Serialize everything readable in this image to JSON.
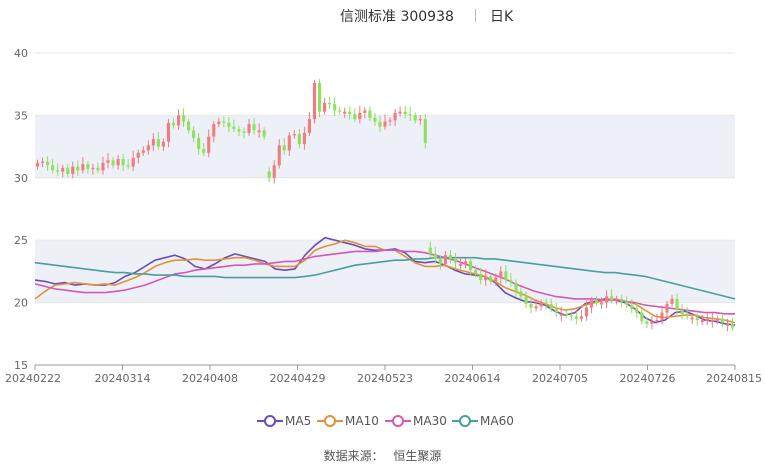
{
  "header": {
    "title": "信测标准 300938",
    "period": "日K"
  },
  "legend": [
    {
      "name": "MA5",
      "color": "#6a4fb5"
    },
    {
      "name": "MA10",
      "color": "#e0923c"
    },
    {
      "name": "MA30",
      "color": "#d657b5"
    },
    {
      "name": "MA60",
      "color": "#4b9e9f"
    }
  ],
  "footer": {
    "source_label": "数据来源：",
    "source_name": "恒生聚源"
  },
  "colors": {
    "up": "#f07c82",
    "down": "#8ee05e",
    "band": "#eef0f8",
    "grid": "#e6e6e6"
  },
  "chart_data": {
    "type": "candlestick",
    "title": "信测标准 300938",
    "ylim": [
      15,
      40
    ],
    "yticks": [
      15,
      20,
      25,
      30,
      35,
      40
    ],
    "grid": true,
    "legend_position": "bottom",
    "xtick_labels": [
      "20240222",
      "20240314",
      "20240408",
      "20240429",
      "20240523",
      "20240614",
      "20240705",
      "20240726",
      "20240815"
    ],
    "close": [
      31.2,
      31.3,
      31.0,
      30.6,
      30.5,
      30.8,
      30.3,
      30.9,
      30.6,
      31.1,
      30.7,
      30.8,
      30.6,
      31.2,
      31.4,
      31.0,
      31.5,
      31.0,
      30.9,
      31.6,
      32.0,
      32.2,
      32.6,
      33.1,
      32.5,
      32.9,
      34.4,
      34.2,
      35.0,
      34.5,
      33.8,
      33.2,
      32.3,
      32.0,
      33.3,
      34.3,
      34.5,
      34.4,
      34.1,
      33.9,
      33.7,
      33.6,
      34.3,
      33.8,
      33.8,
      33.3,
      30.0,
      31.0,
      32.6,
      32.2,
      33.4,
      33.5,
      32.7,
      33.6,
      34.7,
      37.6,
      35.3,
      36.0,
      35.9,
      35.4,
      35.3,
      35.3,
      35.1,
      34.7,
      35.2,
      35.4,
      34.8,
      34.5,
      34.1,
      34.5,
      34.6,
      35.2,
      35.3,
      35.1,
      35.0,
      34.6,
      34.7,
      32.8,
      23.9,
      23.5,
      23.1,
      23.8,
      23.5,
      23.2,
      23.1,
      23.3,
      22.6,
      22.3,
      21.8,
      22.1,
      21.7,
      22.0,
      22.5,
      21.8,
      21.6,
      20.9,
      20.5,
      19.9,
      19.6,
      19.7,
      20.0,
      19.9,
      19.5,
      19.2,
      19.1,
      19.0,
      18.9,
      18.7,
      18.9,
      19.6,
      20.2,
      20.0,
      20.0,
      20.5,
      20.2,
      20.3,
      20.1,
      19.8,
      19.5,
      19.2,
      18.5,
      18.3,
      18.5,
      18.6,
      19.2,
      19.9,
      20.3,
      19.4,
      19.1,
      18.9,
      18.8,
      18.6,
      18.6,
      18.7,
      18.6,
      18.7,
      18.4,
      18.3,
      18.0
    ],
    "series": [
      {
        "name": "MA5",
        "values": [
          21.8,
          21.7,
          21.5,
          21.6,
          21.4,
          21.5,
          21.4,
          21.4,
          21.6,
          22.1,
          22.4,
          22.9,
          23.4,
          23.6,
          23.8,
          23.5,
          22.9,
          22.7,
          23.1,
          23.6,
          23.9,
          23.7,
          23.5,
          23.3,
          22.7,
          22.6,
          22.7,
          23.8,
          24.6,
          25.2,
          25.0,
          24.8,
          24.6,
          24.3,
          24.2,
          24.2,
          24.3,
          24.0,
          23.3,
          23.2,
          23.3,
          23.0,
          22.6,
          22.3,
          22.2,
          22.1,
          21.6,
          20.8,
          20.4,
          20.1,
          20.0,
          19.8,
          19.3,
          19.0,
          19.2,
          19.9,
          20.1,
          20.3,
          20.2,
          20.0,
          19.5,
          18.8,
          18.4,
          18.6,
          19.2,
          19.3,
          19.0,
          18.6,
          18.5,
          18.3,
          18.2
        ]
      },
      {
        "name": "MA10",
        "values": [
          20.3,
          20.9,
          21.4,
          21.5,
          21.6,
          21.5,
          21.4,
          21.5,
          21.4,
          21.7,
          22.0,
          22.4,
          22.9,
          23.2,
          23.4,
          23.4,
          23.5,
          23.4,
          23.4,
          23.5,
          23.6,
          23.6,
          23.4,
          23.1,
          22.9,
          22.9,
          22.9,
          23.4,
          24.2,
          24.5,
          24.7,
          25.0,
          24.8,
          24.5,
          24.5,
          24.2,
          24.2,
          23.7,
          23.2,
          22.9,
          22.9,
          23.0,
          22.7,
          22.5,
          22.3,
          22.1,
          21.7,
          21.2,
          20.9,
          20.6,
          20.2,
          19.9,
          19.6,
          19.4,
          19.5,
          19.8,
          20.0,
          20.2,
          20.3,
          20.1,
          19.9,
          19.4,
          18.9,
          18.8,
          18.9,
          19.0,
          19.0,
          18.8,
          18.7,
          18.6,
          18.4
        ]
      },
      {
        "name": "MA30",
        "values": [
          21.5,
          21.3,
          21.1,
          21.0,
          20.9,
          20.8,
          20.8,
          20.8,
          20.9,
          21.0,
          21.2,
          21.4,
          21.7,
          22.0,
          22.3,
          22.4,
          22.6,
          22.7,
          22.8,
          22.9,
          23.0,
          23.0,
          23.1,
          23.1,
          23.2,
          23.3,
          23.3,
          23.5,
          23.7,
          23.8,
          23.9,
          24.0,
          24.1,
          24.1,
          24.1,
          24.2,
          24.2,
          24.1,
          24.1,
          24.0,
          23.8,
          23.6,
          23.4,
          23.1,
          22.8,
          22.5,
          22.2,
          21.9,
          21.5,
          21.2,
          20.9,
          20.7,
          20.5,
          20.4,
          20.3,
          20.3,
          20.3,
          20.2,
          20.2,
          20.1,
          20.0,
          19.8,
          19.7,
          19.6,
          19.5,
          19.4,
          19.3,
          19.2,
          19.2,
          19.1,
          19.1
        ]
      },
      {
        "name": "MA60",
        "values": [
          23.2,
          23.1,
          23.0,
          22.9,
          22.8,
          22.7,
          22.6,
          22.5,
          22.4,
          22.4,
          22.3,
          22.3,
          22.2,
          22.2,
          22.2,
          22.1,
          22.1,
          22.1,
          22.1,
          22.0,
          22.0,
          22.0,
          22.0,
          22.0,
          22.0,
          22.0,
          22.0,
          22.1,
          22.2,
          22.4,
          22.6,
          22.8,
          23.0,
          23.1,
          23.2,
          23.3,
          23.4,
          23.4,
          23.5,
          23.5,
          23.6,
          23.6,
          23.6,
          23.6,
          23.6,
          23.5,
          23.5,
          23.4,
          23.3,
          23.2,
          23.1,
          23.0,
          22.9,
          22.8,
          22.7,
          22.6,
          22.5,
          22.4,
          22.4,
          22.3,
          22.2,
          22.1,
          21.9,
          21.7,
          21.5,
          21.3,
          21.1,
          20.9,
          20.7,
          20.5,
          20.3
        ]
      }
    ]
  }
}
